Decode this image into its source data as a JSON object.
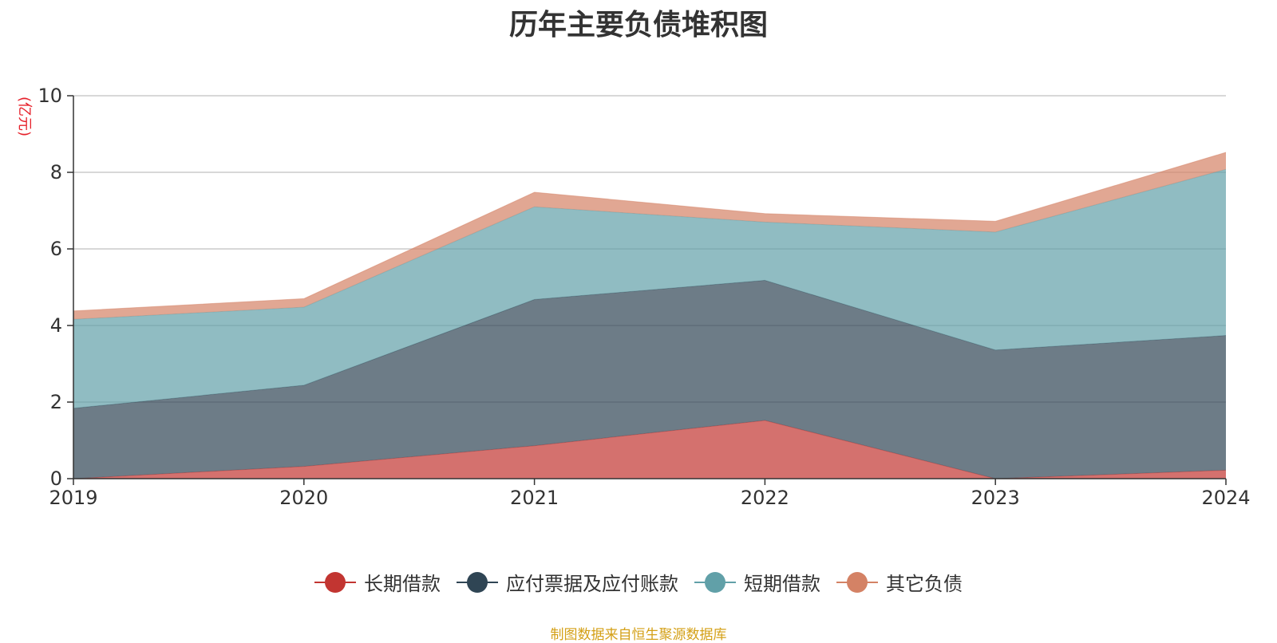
{
  "chart_data": {
    "type": "area",
    "stacked": true,
    "title": "历年主要负债堆积图",
    "unit_label": "(亿元)",
    "categories": [
      "2019",
      "2020",
      "2021",
      "2022",
      "2023",
      "2024"
    ],
    "ylim": [
      0,
      10
    ],
    "yticks": [
      "0",
      "2",
      "4",
      "6",
      "8",
      "10"
    ],
    "grid": true,
    "legend_position": "bottom",
    "series": [
      {
        "name": "长期借款",
        "color": "#c23531",
        "values": [
          0.0,
          0.32,
          0.86,
          1.52,
          0.0,
          0.22
        ]
      },
      {
        "name": "应付票据及应付账款",
        "color": "#2f4554",
        "values": [
          1.84,
          2.12,
          3.82,
          3.66,
          3.36,
          3.52
        ]
      },
      {
        "name": "短期借款",
        "color": "#61a0a8",
        "values": [
          2.32,
          2.04,
          2.42,
          1.52,
          3.08,
          4.34
        ]
      },
      {
        "name": "其它负债",
        "color": "#d48265",
        "values": [
          0.22,
          0.22,
          0.38,
          0.22,
          0.28,
          0.44
        ]
      }
    ],
    "source": "制图数据来自恒生聚源数据库"
  }
}
